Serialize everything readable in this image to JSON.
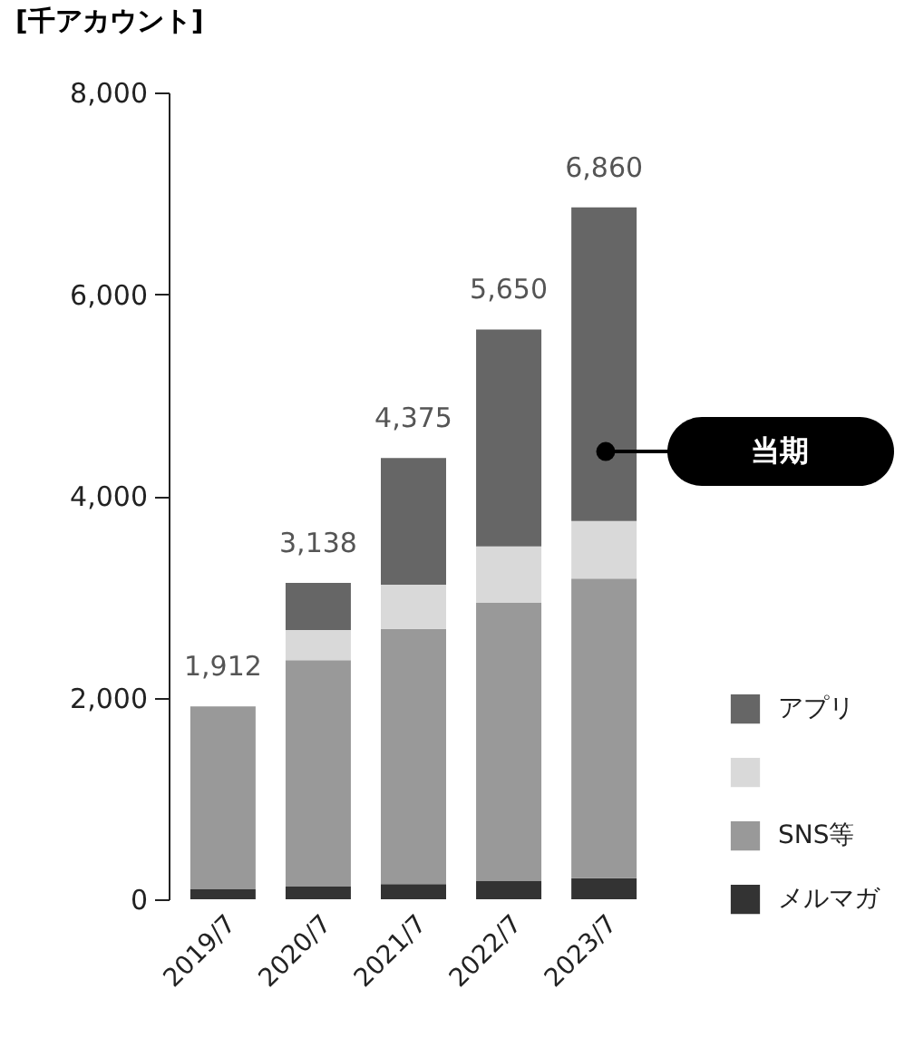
{
  "chart_data": {
    "type": "bar",
    "stacked": true,
    "ylabel": "[千アカウント]",
    "categories": [
      "2019/7",
      "2020/7",
      "2021/7",
      "2022/7",
      "2023/7"
    ],
    "series": [
      {
        "name": "メルマガ",
        "color": "#333333",
        "values": [
          100,
          130,
          150,
          180,
          210
        ]
      },
      {
        "name": "SNS等",
        "color": "#999999",
        "values": [
          1812,
          2240,
          2530,
          2760,
          2970
        ]
      },
      {
        "name": null,
        "color": "#d9d9d9",
        "values": [
          null,
          300,
          440,
          560,
          570
        ]
      },
      {
        "name": "アプリ",
        "color": "#666666",
        "values": [
          null,
          468,
          1255,
          2150,
          3110
        ]
      }
    ],
    "totals": [
      "1,912",
      "3,138",
      "4,375",
      "5,650",
      "6,860"
    ],
    "ylim": [
      0,
      8000
    ],
    "yticks": [
      0,
      {
        "value": 2000,
        "label": "2,000"
      },
      {
        "value": 4000,
        "label": "4,000"
      },
      {
        "value": 6000,
        "label": "6,000"
      },
      {
        "value": 8000,
        "label": "8,000"
      }
    ],
    "grid": false,
    "legend": "bottom right",
    "annotations": [
      "当期"
    ]
  }
}
